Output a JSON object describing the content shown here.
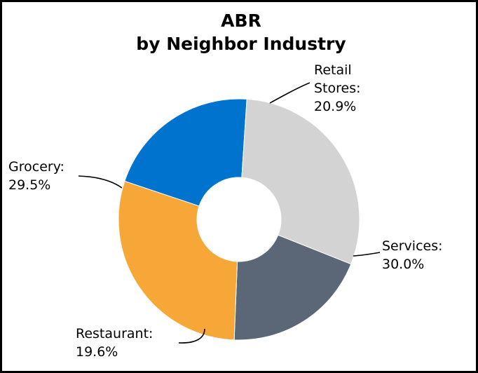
{
  "chart_data": {
    "type": "pie",
    "title": "ABR",
    "subtitle": "by Neighbor Industry",
    "slices": [
      {
        "label": "Retail Stores",
        "label_lines": [
          "Retail",
          "Stores:"
        ],
        "percent_text": "20.9%",
        "value": 20.9,
        "color": "#0073cf"
      },
      {
        "label": "Services",
        "label_lines": [
          "Services:"
        ],
        "percent_text": "30.0%",
        "value": 30.0,
        "color": "#d3d3d3"
      },
      {
        "label": "Restaurant",
        "label_lines": [
          "Restaurant:"
        ],
        "percent_text": "19.6%",
        "value": 19.6,
        "color": "#5b6776"
      },
      {
        "label": "Grocery",
        "label_lines": [
          "Grocery:"
        ],
        "percent_text": "29.5%",
        "value": 29.5,
        "color": "#f7a738"
      }
    ],
    "donut": true,
    "legend": "none (slice labels with leader lines)"
  }
}
